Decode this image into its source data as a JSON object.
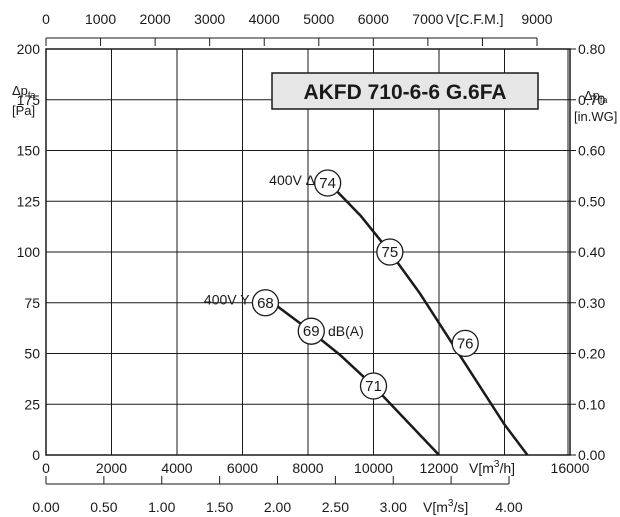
{
  "title": "AKFD 710-6-6 G.6FA",
  "left_axis": {
    "symbol": "Δp",
    "subscript": "fa",
    "unit": "[Pa]",
    "ticks": [
      "0",
      "25",
      "50",
      "75",
      "100",
      "125",
      "150",
      "175",
      "200"
    ]
  },
  "right_axis": {
    "symbol": "Δp",
    "subscript": "fa",
    "unit": "[in.WG]",
    "ticks": [
      "0.00",
      "0.10",
      "0.20",
      "0.30",
      "0.40",
      "0.50",
      "0.60",
      "0.70",
      "0.80"
    ]
  },
  "bottom_axis": {
    "label_main": "V[m",
    "label_sup": "3",
    "label_end": "/h]",
    "ticks": [
      "0",
      "2000",
      "4000",
      "6000",
      "8000",
      "10000",
      "12000",
      "16000"
    ]
  },
  "top_axis": {
    "label": "V[C.F.M.]",
    "ticks": [
      "0",
      "1000",
      "2000",
      "3000",
      "4000",
      "5000",
      "6000",
      "7000",
      "9000"
    ]
  },
  "second_bottom_axis": {
    "label_main": "V[m",
    "label_sup": "3",
    "label_end": "/s]",
    "ticks": [
      "0.00",
      "0.50",
      "1.00",
      "1.50",
      "2.00",
      "2.50",
      "3.00",
      "4.00"
    ]
  },
  "unit_dba": "dB(A)",
  "chart_data": {
    "type": "line",
    "title": "AKFD 710-6-6 G.6FA",
    "xlabel": "V[m3/h]",
    "ylabel": "Δpfa [Pa]",
    "xlim": [
      0,
      16000
    ],
    "ylim": [
      0,
      200
    ],
    "grid": true,
    "series": [
      {
        "name": "400V Δ",
        "x": [
          8400,
          9600,
          10500,
          11400,
          12400,
          13200,
          14000,
          14700
        ],
        "y": [
          138,
          118,
          100,
          80,
          55,
          35,
          15,
          0
        ],
        "labels": [
          {
            "text": "74",
            "x": 8600,
            "y": 134
          },
          {
            "text": "75",
            "x": 10500,
            "y": 100
          },
          {
            "text": "76",
            "x": 12800,
            "y": 55
          }
        ]
      },
      {
        "name": "400V Y",
        "x": [
          6400,
          7000,
          8000,
          9000,
          10000,
          11000,
          12000
        ],
        "y": [
          79,
          74,
          62,
          49,
          34,
          17,
          0
        ],
        "labels": [
          {
            "text": "68",
            "x": 6700,
            "y": 75
          },
          {
            "text": "69",
            "x": 8100,
            "y": 61
          },
          {
            "text": "71",
            "x": 10000,
            "y": 34
          }
        ]
      }
    ]
  }
}
